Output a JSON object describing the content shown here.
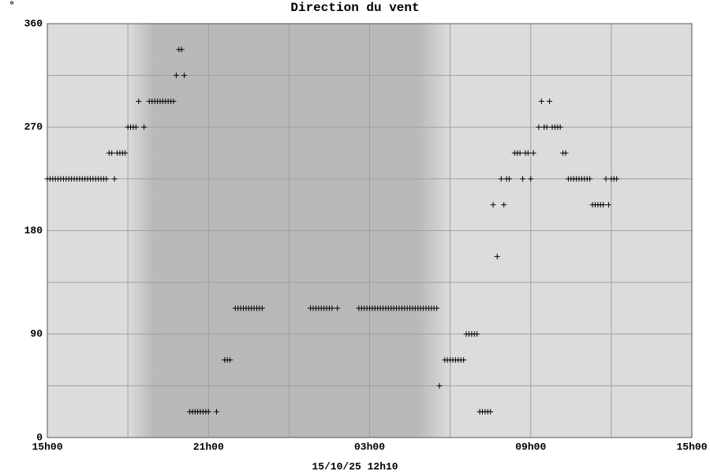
{
  "chart_data": {
    "type": "scatter",
    "title": "Direction du vent",
    "ylabel": "°",
    "xlabel": "15/10/25 12h10",
    "color": "#000000",
    "background": "#dcdcdc",
    "shade_color": "#b9b9b9",
    "shade": [
      3.0,
      15.0
    ],
    "grid": true,
    "xlim": [
      0,
      24
    ],
    "xticks": [
      {
        "value": 0,
        "label": "15h00"
      },
      {
        "value": 6,
        "label": "21h00"
      },
      {
        "value": 12,
        "label": "03h00"
      },
      {
        "value": 18,
        "label": "09h00"
      },
      {
        "value": 24,
        "label": "15h00"
      }
    ],
    "minor_xticks": [
      3,
      9,
      15,
      21
    ],
    "ylim": [
      0,
      360
    ],
    "yticks": [
      0,
      90,
      180,
      270,
      360
    ],
    "minor_yticks": [
      45,
      135,
      225,
      315
    ],
    "x": [
      0.0,
      0.1,
      0.2,
      0.3,
      0.4,
      0.5,
      0.6,
      0.7,
      0.8,
      0.9,
      1.0,
      1.1,
      1.2,
      1.3,
      1.4,
      1.5,
      1.6,
      1.7,
      1.8,
      1.9,
      2.0,
      2.1,
      2.2,
      2.3,
      2.4,
      2.5,
      2.6,
      2.7,
      2.8,
      2.9,
      3.0,
      3.1,
      3.2,
      3.3,
      3.4,
      3.6,
      3.8,
      3.9,
      4.0,
      4.1,
      4.2,
      4.3,
      4.4,
      4.5,
      4.6,
      4.7,
      4.8,
      4.9,
      5.0,
      5.1,
      5.3,
      5.4,
      5.5,
      5.6,
      5.7,
      5.8,
      5.9,
      6.0,
      6.3,
      6.6,
      6.7,
      6.8,
      7.0,
      7.1,
      7.2,
      7.3,
      7.4,
      7.5,
      7.6,
      7.7,
      7.8,
      7.9,
      8.0,
      9.8,
      9.9,
      10.0,
      10.1,
      10.2,
      10.3,
      10.4,
      10.5,
      10.6,
      10.8,
      11.6,
      11.7,
      11.8,
      11.9,
      12.0,
      12.1,
      12.2,
      12.3,
      12.4,
      12.5,
      12.6,
      12.7,
      12.8,
      12.9,
      13.0,
      13.1,
      13.2,
      13.3,
      13.4,
      13.5,
      13.6,
      13.7,
      13.8,
      13.9,
      14.0,
      14.1,
      14.2,
      14.3,
      14.4,
      14.5,
      14.6,
      14.8,
      14.9,
      15.0,
      15.1,
      15.2,
      15.3,
      15.4,
      15.5,
      15.6,
      15.7,
      15.8,
      15.9,
      16.0,
      16.1,
      16.2,
      16.3,
      16.4,
      16.5,
      16.6,
      16.75,
      16.9,
      17.0,
      17.1,
      17.2,
      17.4,
      17.5,
      17.6,
      17.7,
      17.8,
      17.9,
      18.0,
      18.1,
      18.3,
      18.4,
      18.5,
      18.6,
      18.7,
      18.8,
      18.9,
      19.0,
      19.1,
      19.2,
      19.3,
      19.4,
      19.5,
      19.6,
      19.7,
      19.8,
      19.9,
      20.0,
      20.1,
      20.2,
      20.3,
      20.4,
      20.5,
      20.6,
      20.7,
      20.8,
      20.9,
      21.0,
      21.1,
      21.2
    ],
    "values": [
      225,
      225,
      225,
      225,
      225,
      225,
      225,
      225,
      225,
      225,
      225,
      225,
      225,
      225,
      225,
      225,
      225,
      225,
      225,
      225,
      225,
      225,
      225,
      247.5,
      247.5,
      225,
      247.5,
      247.5,
      247.5,
      247.5,
      270,
      270,
      270,
      270,
      292.5,
      270,
      292.5,
      292.5,
      292.5,
      292.5,
      292.5,
      292.5,
      292.5,
      292.5,
      292.5,
      292.5,
      315,
      337.5,
      337.5,
      315,
      22.5,
      22.5,
      22.5,
      22.5,
      22.5,
      22.5,
      22.5,
      22.5,
      22.5,
      67.5,
      67.5,
      67.5,
      112.5,
      112.5,
      112.5,
      112.5,
      112.5,
      112.5,
      112.5,
      112.5,
      112.5,
      112.5,
      112.5,
      112.5,
      112.5,
      112.5,
      112.5,
      112.5,
      112.5,
      112.5,
      112.5,
      112.5,
      112.5,
      112.5,
      112.5,
      112.5,
      112.5,
      112.5,
      112.5,
      112.5,
      112.5,
      112.5,
      112.5,
      112.5,
      112.5,
      112.5,
      112.5,
      112.5,
      112.5,
      112.5,
      112.5,
      112.5,
      112.5,
      112.5,
      112.5,
      112.5,
      112.5,
      112.5,
      112.5,
      112.5,
      112.5,
      112.5,
      112.5,
      45,
      67.5,
      67.5,
      67.5,
      67.5,
      67.5,
      67.5,
      67.5,
      67.5,
      90,
      90,
      90,
      90,
      90,
      22.5,
      22.5,
      22.5,
      22.5,
      22.5,
      202.5,
      157.5,
      225,
      202.5,
      225,
      225,
      247.5,
      247.5,
      247.5,
      225,
      247.5,
      247.5,
      225,
      247.5,
      270,
      292.5,
      270,
      270,
      292.5,
      270,
      270,
      270,
      270,
      247.5,
      247.5,
      225,
      225,
      225,
      225,
      225,
      225,
      225,
      225,
      225,
      202.5,
      202.5,
      202.5,
      202.5,
      202.5,
      225,
      202.5,
      225,
      225,
      225
    ]
  }
}
